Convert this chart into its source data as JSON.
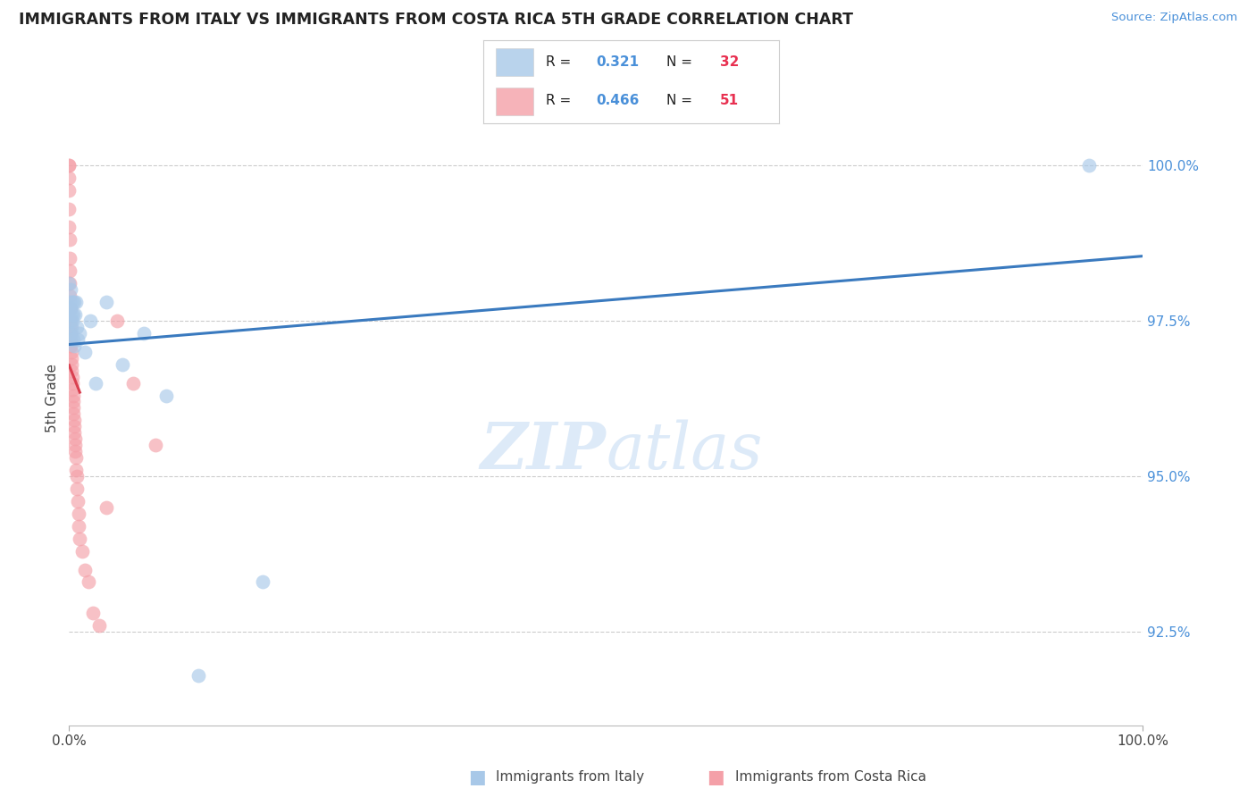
{
  "title": "IMMIGRANTS FROM ITALY VS IMMIGRANTS FROM COSTA RICA 5TH GRADE CORRELATION CHART",
  "source": "Source: ZipAtlas.com",
  "ylabel": "5th Grade",
  "blue_color": "#a8c8e8",
  "pink_color": "#f4a0a8",
  "blue_line_color": "#3a7abf",
  "pink_line_color": "#d94050",
  "watermark_color": "#ddeaf8",
  "legend_R1_val": "0.321",
  "legend_N1_val": "32",
  "legend_R2_val": "0.466",
  "legend_N2_val": "51",
  "italy_x": [
    0.0,
    0.0,
    0.0,
    0.05,
    0.1,
    0.12,
    0.15,
    0.18,
    0.2,
    0.22,
    0.25,
    0.28,
    0.3,
    0.35,
    0.4,
    0.45,
    0.5,
    0.55,
    0.6,
    0.7,
    0.8,
    1.0,
    1.5,
    2.0,
    2.5,
    3.5,
    5.0,
    7.0,
    9.0,
    12.0,
    18.0,
    95.0
  ],
  "italy_y": [
    98.1,
    97.6,
    97.3,
    97.8,
    97.5,
    98.0,
    97.2,
    97.7,
    97.4,
    97.6,
    97.3,
    97.8,
    97.5,
    97.2,
    97.6,
    97.8,
    97.1,
    97.6,
    97.8,
    97.4,
    97.2,
    97.3,
    97.0,
    97.5,
    96.5,
    97.8,
    96.8,
    97.3,
    96.3,
    91.8,
    93.3,
    100.0
  ],
  "costarica_x": [
    0.0,
    0.0,
    0.0,
    0.0,
    0.0,
    0.0,
    0.02,
    0.03,
    0.05,
    0.07,
    0.08,
    0.1,
    0.12,
    0.13,
    0.15,
    0.17,
    0.18,
    0.2,
    0.22,
    0.23,
    0.25,
    0.27,
    0.3,
    0.32,
    0.35,
    0.37,
    0.4,
    0.42,
    0.45,
    0.47,
    0.5,
    0.52,
    0.55,
    0.58,
    0.6,
    0.65,
    0.7,
    0.75,
    0.8,
    0.85,
    0.9,
    1.0,
    1.2,
    1.5,
    1.8,
    2.2,
    2.8,
    3.5,
    4.5,
    6.0,
    8.0
  ],
  "costarica_y": [
    100.0,
    100.0,
    99.8,
    99.6,
    99.3,
    99.0,
    98.8,
    98.5,
    98.3,
    98.1,
    97.9,
    97.7,
    97.5,
    97.4,
    97.3,
    97.2,
    97.1,
    97.0,
    96.9,
    96.8,
    96.7,
    96.6,
    96.5,
    96.4,
    96.3,
    96.2,
    96.1,
    96.0,
    95.9,
    95.8,
    95.7,
    95.6,
    95.5,
    95.4,
    95.3,
    95.1,
    95.0,
    94.8,
    94.6,
    94.4,
    94.2,
    94.0,
    93.8,
    93.5,
    93.3,
    92.8,
    92.6,
    94.5,
    97.5,
    96.5,
    95.5
  ],
  "xlim": [
    0,
    100
  ],
  "ylim": [
    91.0,
    101.5
  ],
  "yticks": [
    92.5,
    95.0,
    97.5,
    100.0
  ]
}
